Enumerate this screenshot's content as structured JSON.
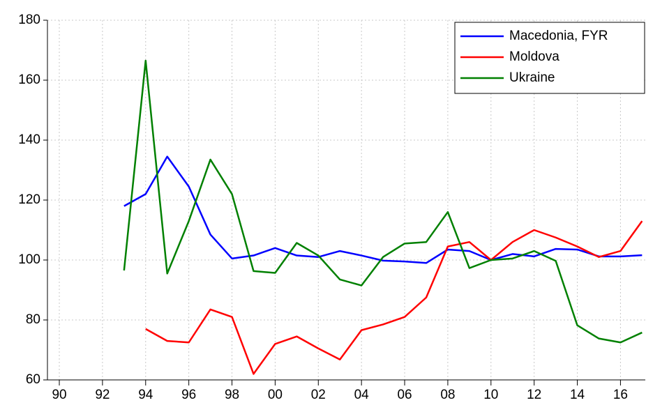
{
  "chart_data": {
    "type": "line",
    "x": [
      1993,
      1994,
      1995,
      1996,
      1997,
      1998,
      1999,
      2000,
      2001,
      2002,
      2003,
      2004,
      2005,
      2006,
      2007,
      2008,
      2009,
      2010,
      2011,
      2012,
      2013,
      2014,
      2015,
      2016,
      2017
    ],
    "series": [
      {
        "name": "Macedonia, FYR",
        "color": "#0000ff",
        "values": [
          118,
          122,
          134.5,
          124.5,
          108.5,
          100.5,
          101.5,
          104,
          101.5,
          101,
          103,
          101.5,
          99.8,
          99.5,
          99,
          103.5,
          103,
          100,
          102,
          101.2,
          103.7,
          103.5,
          101.2,
          101.2,
          101.6
        ]
      },
      {
        "name": "Moldova",
        "color": "#ff0000",
        "values": [
          null,
          77,
          73,
          72.5,
          83.5,
          81,
          62,
          72,
          74.5,
          70.5,
          66.8,
          76.6,
          78.5,
          81,
          87.5,
          104.5,
          106,
          100,
          106,
          110,
          107.5,
          104.5,
          101,
          103,
          113
        ]
      },
      {
        "name": "Ukraine",
        "color": "#008000",
        "values": [
          96.5,
          166.5,
          95.5,
          113,
          133.5,
          122,
          96.3,
          95.7,
          105.7,
          101.5,
          93.5,
          91.5,
          101,
          105.5,
          106,
          116,
          97.3,
          100,
          100.5,
          103,
          99.7,
          78.2,
          73.8,
          72.5,
          75.8
        ]
      }
    ],
    "xlim": [
      1989.45,
      2017.15
    ],
    "xticks": [
      {
        "value": 1990,
        "label": "90"
      },
      {
        "value": 1992,
        "label": "92"
      },
      {
        "value": 1994,
        "label": "94"
      },
      {
        "value": 1996,
        "label": "96"
      },
      {
        "value": 1998,
        "label": "98"
      },
      {
        "value": 2000,
        "label": "00"
      },
      {
        "value": 2002,
        "label": "02"
      },
      {
        "value": 2004,
        "label": "04"
      },
      {
        "value": 2006,
        "label": "06"
      },
      {
        "value": 2008,
        "label": "08"
      },
      {
        "value": 2010,
        "label": "10"
      },
      {
        "value": 2012,
        "label": "12"
      },
      {
        "value": 2014,
        "label": "14"
      },
      {
        "value": 2016,
        "label": "16"
      }
    ],
    "ylim": [
      60,
      180
    ],
    "yticks": [
      60,
      80,
      100,
      120,
      140,
      160,
      180
    ],
    "grid": true,
    "legend": "top-right"
  }
}
